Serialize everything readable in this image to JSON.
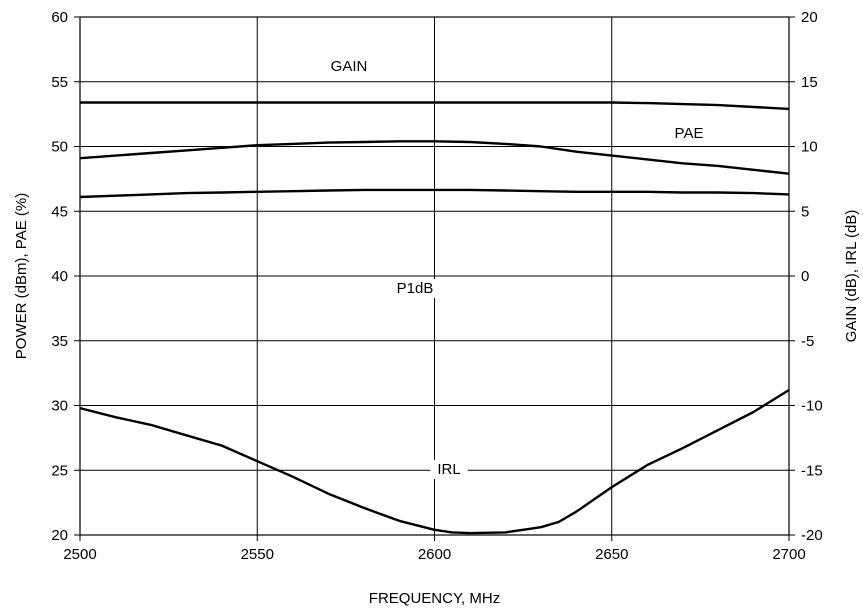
{
  "chart_data": {
    "type": "line",
    "xlabel": "FREQUENCY, MHz",
    "ylabel_left": "POWER (dBm), PAE (%)",
    "ylabel_right": "GAIN (dB), IRL (dB)",
    "xlim": [
      2500,
      2700
    ],
    "ylim_left": [
      20,
      60
    ],
    "ylim_right": [
      -20,
      20
    ],
    "grid": true,
    "x_ticks": [
      "2500",
      "2550",
      "2600",
      "2650",
      "2700"
    ],
    "y_left_ticks": [
      "20",
      "25",
      "30",
      "35",
      "40",
      "45",
      "50",
      "55",
      "60"
    ],
    "y_right_ticks": [
      "-20",
      "-15",
      "-10",
      "-5",
      "0",
      "5",
      "10",
      "15",
      "20"
    ],
    "annotations": [
      "GAIN",
      "PAE",
      "P1dB",
      "IRL"
    ],
    "series": [
      {
        "name": "GAIN",
        "axis": "right",
        "x": [
          2500,
          2550,
          2600,
          2650,
          2660,
          2680,
          2700
        ],
        "y": [
          13.4,
          13.4,
          13.4,
          13.4,
          13.35,
          13.2,
          12.9
        ]
      },
      {
        "name": "PAE",
        "axis": "left",
        "x": [
          2500,
          2505,
          2510,
          2520,
          2530,
          2540,
          2550,
          2560,
          2570,
          2580,
          2590,
          2600,
          2610,
          2620,
          2630,
          2640,
          2650,
          2660,
          2670,
          2680,
          2690,
          2700
        ],
        "y": [
          49.1,
          49.2,
          49.3,
          49.5,
          49.7,
          49.9,
          50.1,
          50.2,
          50.3,
          50.35,
          50.4,
          50.4,
          50.35,
          50.2,
          50.0,
          49.6,
          49.3,
          49.0,
          48.7,
          48.5,
          48.2,
          47.9
        ]
      },
      {
        "name": "P1dB",
        "axis": "left",
        "x": [
          2500,
          2510,
          2520,
          2530,
          2540,
          2550,
          2560,
          2570,
          2580,
          2590,
          2600,
          2610,
          2620,
          2630,
          2640,
          2650,
          2660,
          2670,
          2680,
          2690,
          2700
        ],
        "y": [
          46.1,
          46.2,
          46.3,
          46.4,
          46.45,
          46.5,
          46.55,
          46.6,
          46.65,
          46.65,
          46.65,
          46.65,
          46.6,
          46.55,
          46.5,
          46.5,
          46.5,
          46.45,
          46.45,
          46.4,
          46.3
        ]
      },
      {
        "name": "IRL",
        "axis": "right",
        "x": [
          2500,
          2510,
          2520,
          2530,
          2540,
          2550,
          2560,
          2570,
          2580,
          2590,
          2600,
          2605,
          2610,
          2620,
          2625,
          2630,
          2635,
          2640,
          2650,
          2660,
          2670,
          2680,
          2690,
          2700
        ],
        "y": [
          -10.2,
          -10.9,
          -11.5,
          -12.3,
          -13.1,
          -14.3,
          -15.5,
          -16.8,
          -17.9,
          -18.9,
          -19.6,
          -19.8,
          -19.85,
          -19.8,
          -19.6,
          -19.4,
          -19.0,
          -18.2,
          -16.3,
          -14.6,
          -13.3,
          -11.9,
          -10.5,
          -8.8
        ]
      }
    ]
  }
}
